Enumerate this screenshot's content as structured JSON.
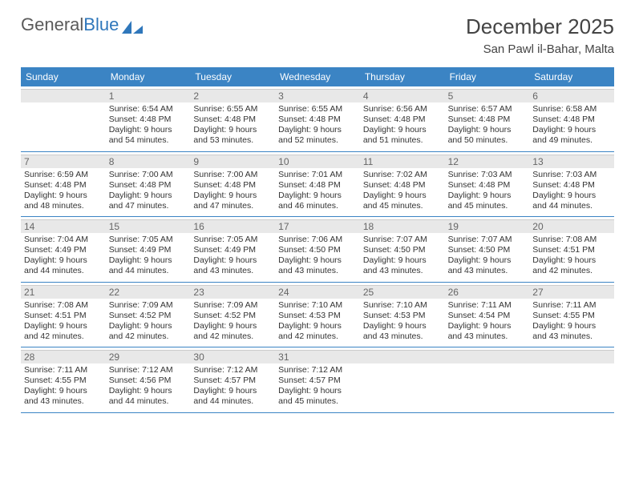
{
  "brand": {
    "part1": "General",
    "part2": "Blue"
  },
  "title": "December 2025",
  "location": "San Pawl il-Bahar, Malta",
  "daynames": [
    "Sunday",
    "Monday",
    "Tuesday",
    "Wednesday",
    "Thursday",
    "Friday",
    "Saturday"
  ],
  "theme": {
    "header_bg": "#3b84c4",
    "header_fg": "#ffffff",
    "daynum_bg": "#e8e8e8",
    "week_border": "#3b84c4",
    "text_color": "#333333"
  },
  "layout": {
    "first_weekday_offset": 1,
    "days_in_month": 31,
    "columns": 7
  },
  "days": [
    {
      "n": 1,
      "sunrise": "6:54 AM",
      "sunset": "4:48 PM",
      "daylight": "9 hours and 54 minutes."
    },
    {
      "n": 2,
      "sunrise": "6:55 AM",
      "sunset": "4:48 PM",
      "daylight": "9 hours and 53 minutes."
    },
    {
      "n": 3,
      "sunrise": "6:55 AM",
      "sunset": "4:48 PM",
      "daylight": "9 hours and 52 minutes."
    },
    {
      "n": 4,
      "sunrise": "6:56 AM",
      "sunset": "4:48 PM",
      "daylight": "9 hours and 51 minutes."
    },
    {
      "n": 5,
      "sunrise": "6:57 AM",
      "sunset": "4:48 PM",
      "daylight": "9 hours and 50 minutes."
    },
    {
      "n": 6,
      "sunrise": "6:58 AM",
      "sunset": "4:48 PM",
      "daylight": "9 hours and 49 minutes."
    },
    {
      "n": 7,
      "sunrise": "6:59 AM",
      "sunset": "4:48 PM",
      "daylight": "9 hours and 48 minutes."
    },
    {
      "n": 8,
      "sunrise": "7:00 AM",
      "sunset": "4:48 PM",
      "daylight": "9 hours and 47 minutes."
    },
    {
      "n": 9,
      "sunrise": "7:00 AM",
      "sunset": "4:48 PM",
      "daylight": "9 hours and 47 minutes."
    },
    {
      "n": 10,
      "sunrise": "7:01 AM",
      "sunset": "4:48 PM",
      "daylight": "9 hours and 46 minutes."
    },
    {
      "n": 11,
      "sunrise": "7:02 AM",
      "sunset": "4:48 PM",
      "daylight": "9 hours and 45 minutes."
    },
    {
      "n": 12,
      "sunrise": "7:03 AM",
      "sunset": "4:48 PM",
      "daylight": "9 hours and 45 minutes."
    },
    {
      "n": 13,
      "sunrise": "7:03 AM",
      "sunset": "4:48 PM",
      "daylight": "9 hours and 44 minutes."
    },
    {
      "n": 14,
      "sunrise": "7:04 AM",
      "sunset": "4:49 PM",
      "daylight": "9 hours and 44 minutes."
    },
    {
      "n": 15,
      "sunrise": "7:05 AM",
      "sunset": "4:49 PM",
      "daylight": "9 hours and 44 minutes."
    },
    {
      "n": 16,
      "sunrise": "7:05 AM",
      "sunset": "4:49 PM",
      "daylight": "9 hours and 43 minutes."
    },
    {
      "n": 17,
      "sunrise": "7:06 AM",
      "sunset": "4:50 PM",
      "daylight": "9 hours and 43 minutes."
    },
    {
      "n": 18,
      "sunrise": "7:07 AM",
      "sunset": "4:50 PM",
      "daylight": "9 hours and 43 minutes."
    },
    {
      "n": 19,
      "sunrise": "7:07 AM",
      "sunset": "4:50 PM",
      "daylight": "9 hours and 43 minutes."
    },
    {
      "n": 20,
      "sunrise": "7:08 AM",
      "sunset": "4:51 PM",
      "daylight": "9 hours and 42 minutes."
    },
    {
      "n": 21,
      "sunrise": "7:08 AM",
      "sunset": "4:51 PM",
      "daylight": "9 hours and 42 minutes."
    },
    {
      "n": 22,
      "sunrise": "7:09 AM",
      "sunset": "4:52 PM",
      "daylight": "9 hours and 42 minutes."
    },
    {
      "n": 23,
      "sunrise": "7:09 AM",
      "sunset": "4:52 PM",
      "daylight": "9 hours and 42 minutes."
    },
    {
      "n": 24,
      "sunrise": "7:10 AM",
      "sunset": "4:53 PM",
      "daylight": "9 hours and 42 minutes."
    },
    {
      "n": 25,
      "sunrise": "7:10 AM",
      "sunset": "4:53 PM",
      "daylight": "9 hours and 43 minutes."
    },
    {
      "n": 26,
      "sunrise": "7:11 AM",
      "sunset": "4:54 PM",
      "daylight": "9 hours and 43 minutes."
    },
    {
      "n": 27,
      "sunrise": "7:11 AM",
      "sunset": "4:55 PM",
      "daylight": "9 hours and 43 minutes."
    },
    {
      "n": 28,
      "sunrise": "7:11 AM",
      "sunset": "4:55 PM",
      "daylight": "9 hours and 43 minutes."
    },
    {
      "n": 29,
      "sunrise": "7:12 AM",
      "sunset": "4:56 PM",
      "daylight": "9 hours and 44 minutes."
    },
    {
      "n": 30,
      "sunrise": "7:12 AM",
      "sunset": "4:57 PM",
      "daylight": "9 hours and 44 minutes."
    },
    {
      "n": 31,
      "sunrise": "7:12 AM",
      "sunset": "4:57 PM",
      "daylight": "9 hours and 45 minutes."
    }
  ],
  "labels": {
    "sunrise": "Sunrise:",
    "sunset": "Sunset:",
    "daylight": "Daylight:"
  }
}
